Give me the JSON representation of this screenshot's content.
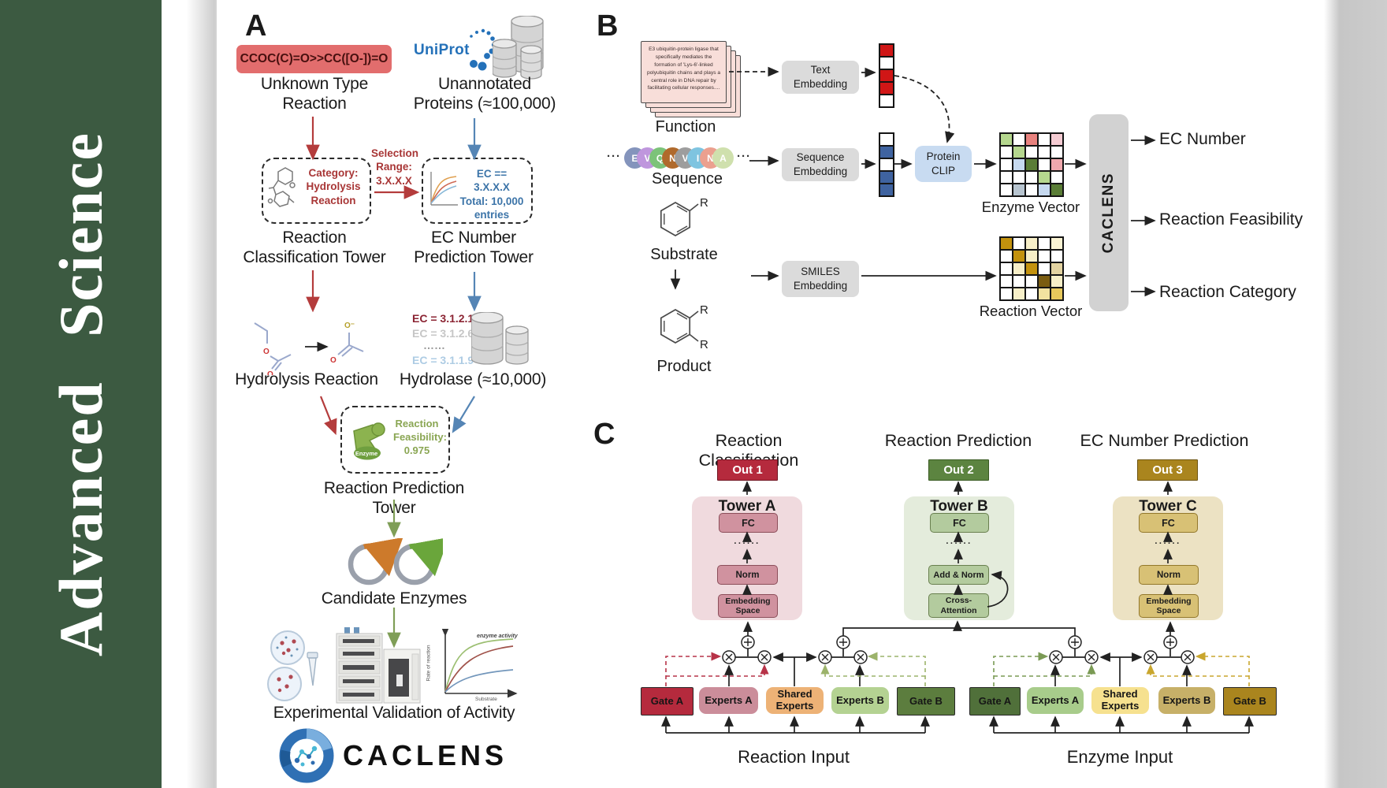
{
  "sidebar": {
    "journal": "Advanced Science"
  },
  "colors": {
    "sidebar-green": "#3c5a41",
    "smiles-red": "#e26d6d",
    "accent-red": "#b43c3c",
    "accent-blue": "#5585b5",
    "accent-green": "#7f9e57",
    "dash-red-text": "#a83636",
    "dash-blue-text": "#3c74a8",
    "feas-green": "#8aa653",
    "uniprot-blue": "#2471b9",
    "card-pink": "#f8ded9",
    "embox-gray": "#dbdbdb",
    "clip-blue": "#c8dbf1",
    "bar-gray": "#d2d2d2",
    "tower-a-bg": "#f0dade",
    "tower-a-box": "#d0929f",
    "tower-a-border": "#8c4e5a",
    "tower-b-bg": "#e4ecdc",
    "tower-b-box": "#b3cb9e",
    "tower-b-border": "#69804f",
    "tower-c-bg": "#ece2c3",
    "tower-c-box": "#d8c175",
    "tower-c-border": "#93782b",
    "out1": "#b52a3d",
    "out1-border": "#701522",
    "out2": "#5c8440",
    "out2-border": "#395a22",
    "out3": "#aa851e",
    "out3-border": "#6d5410",
    "g1-gate-a": "#b52a3d",
    "g1-experts-a": "#cb8d9a",
    "g1-shared": "#edb276",
    "g1-experts-b": "#b4d292",
    "g1-gate-b": "#5c7d3e",
    "g2-gate-a": "#50703a",
    "g2-experts-a": "#a8cc8b",
    "g2-shared": "#f6e18f",
    "g2-experts-b": "#c7b068",
    "g2-gate-b": "#aa851e",
    "ec-red": "#8b2433",
    "ec-gray": "#c6c6c6",
    "ec-dots": "#9c9c9c",
    "ec-blue": "#aecce4"
  },
  "panelA": {
    "label": "A",
    "smiles": "CCOC(C)=O>>CC([O-])=O",
    "unknown_reaction": "Unknown Type\nReaction",
    "uniprot": "UniProt",
    "unannotated": "Unannotated\nProteins (≈100,000)",
    "classification_box": "Category:\nHydrolysis\nReaction",
    "selection": "Selection\nRange:\n3.X.X.X",
    "ec_box": "EC == 3.X.X.X\nTotal: 10,000\nentries",
    "tower1": "Reaction\nClassification Tower",
    "tower2": "EC Number\nPrediction Tower",
    "hydrolysis": "Hydrolysis Reaction",
    "ec_list": [
      "EC = 3.1.2.1",
      "EC = 3.1.2.6",
      "……",
      "EC = 3.1.1.9"
    ],
    "hydrolase": "Hydrolase (≈10,000)",
    "enzyme_label": "Enzyme",
    "feasibility": "Reaction\nFeasibility:\n0.975",
    "tower3": "Reaction Prediction Tower",
    "candidates": "Candidate Enzymes",
    "validation": "Experimental Validation of Activity",
    "logo": "CACLENS",
    "graph": {
      "ylabel": "Rate of reaction",
      "xlabel": "Substrate",
      "annotation": "enzyme activity"
    }
  },
  "panelB": {
    "label": "B",
    "function_text": "E3 ubiquitin-protein ligase that specifically mediates the formation of 'Lys-6'-linked polyubiquitin chains and plays a central role in DNA repair by facilitating cellular responses....",
    "function": "Function",
    "sequence": "Sequence",
    "ellipsis": "···",
    "seq_letters": [
      {
        "ch": "E",
        "color": "#8494bc"
      },
      {
        "ch": "V",
        "color": "#bf96dd"
      },
      {
        "ch": "Q",
        "color": "#7cc379"
      },
      {
        "ch": "N",
        "color": "#b06a2c"
      },
      {
        "ch": "V",
        "color": "#9d9d9d"
      },
      {
        "ch": "I",
        "color": "#7fc4e0"
      },
      {
        "ch": "N",
        "color": "#eba08f"
      },
      {
        "ch": "A",
        "color": "#cfe0ad"
      }
    ],
    "substrate": "Substrate",
    "product": "Product",
    "r_label": "R",
    "text_embedding": "Text\nEmbedding",
    "sequence_embedding": "Sequence\nEmbedding",
    "smiles_embedding": "SMILES\nEmbedding",
    "protein_clip": "Protein\nCLIP",
    "enzyme_vector": "Enzyme Vector",
    "reaction_vector": "Reaction Vector",
    "caclens": "CACLENS",
    "outputs": [
      "EC Number",
      "Reaction Feasibility",
      "Reaction Category"
    ],
    "text_vec": [
      "#d01616",
      "#ffffff",
      "#d01616",
      "#d01616",
      "#ffffff"
    ],
    "seq_vec": [
      "#ffffff",
      "#3f63a0",
      "#ffffff",
      "#3f63a0",
      "#3f63a0"
    ],
    "enzyme_grid": [
      [
        "#b5d78e",
        "#ffffff",
        "#e8827e",
        "#ffffff",
        "#f5ccd3"
      ],
      [
        "#ffffff",
        "#b5d78e",
        "#ffffff",
        "#ffffff",
        "#ffffff"
      ],
      [
        "#ffffff",
        "#c6d9ef",
        "#5a7d36",
        "#ffffff",
        "#f0a8ad"
      ],
      [
        "#ffffff",
        "#ffffff",
        "#ffffff",
        "#b5d78e",
        "#ffffff"
      ],
      [
        "#ffffff",
        "#b7c4cf",
        "#ffffff",
        "#c6d9ef",
        "#5a7d36"
      ]
    ],
    "reaction_grid": [
      [
        "#c3920e",
        "#ffffff",
        "#f7efc8",
        "#ffffff",
        "#faf3d3"
      ],
      [
        "#ffffff",
        "#c3920e",
        "#f7efc8",
        "#ffffff",
        "#ffffff"
      ],
      [
        "#ffffff",
        "#f7efc8",
        "#c3920e",
        "#ffffff",
        "#e3d3a1"
      ],
      [
        "#ffffff",
        "#ffffff",
        "#ffffff",
        "#7a5c10",
        "#f7efc8"
      ],
      [
        "#ffffff",
        "#f7efc8",
        "#ffffff",
        "#f2e2a0",
        "#e7c95c"
      ]
    ]
  },
  "panelC": {
    "label": "C",
    "titles": [
      "Reaction Classification",
      "Reaction Prediction",
      "EC Number Prediction"
    ],
    "outs": [
      "Out 1",
      "Out 2",
      "Out 3"
    ],
    "dots": "......",
    "towers": [
      {
        "name": "Tower A",
        "top": "FC",
        "mid": "Norm",
        "bottom": "Embedding\nSpace"
      },
      {
        "name": "Tower B",
        "top": "FC",
        "mid": "Add & Norm",
        "bottom": "Cross-\nAttention"
      },
      {
        "name": "Tower C",
        "top": "FC",
        "mid": "Norm",
        "bottom": "Embedding\nSpace"
      }
    ],
    "groups": [
      {
        "boxes": [
          "Gate A",
          "Experts A",
          "Shared\nExperts",
          "Experts B",
          "Gate B"
        ],
        "input": "Reaction Input"
      },
      {
        "boxes": [
          "Gate A",
          "Experts A",
          "Shared\nExperts",
          "Experts B",
          "Gate B"
        ],
        "input": "Enzyme Input"
      }
    ]
  }
}
